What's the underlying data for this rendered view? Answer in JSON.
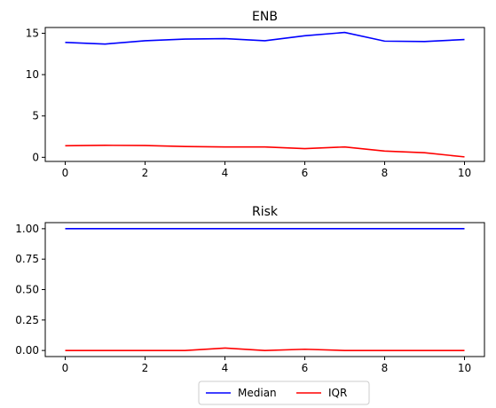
{
  "chart_data": [
    {
      "type": "line",
      "title": "ENB",
      "x": [
        0,
        1,
        2,
        3,
        4,
        5,
        6,
        7,
        8,
        9,
        10
      ],
      "xlim": [
        -0.5,
        10.5
      ],
      "ylim": [
        -0.5,
        15.7
      ],
      "xticks": [
        0,
        2,
        4,
        6,
        8,
        10
      ],
      "yticks": [
        0,
        5,
        10,
        15
      ],
      "ytick_labels": [
        "0",
        "5",
        "10",
        "15"
      ],
      "series": [
        {
          "name": "Median",
          "color": "#0000ff",
          "values": [
            13.9,
            13.7,
            14.1,
            14.3,
            14.35,
            14.1,
            14.7,
            15.1,
            14.05,
            14.0,
            14.25
          ]
        },
        {
          "name": "IQR",
          "color": "#ff0000",
          "values": [
            1.4,
            1.45,
            1.42,
            1.3,
            1.25,
            1.25,
            1.05,
            1.25,
            0.75,
            0.55,
            0.05
          ]
        }
      ]
    },
    {
      "type": "line",
      "title": "Risk",
      "x": [
        0,
        1,
        2,
        3,
        4,
        5,
        6,
        7,
        8,
        9,
        10
      ],
      "xlim": [
        -0.5,
        10.5
      ],
      "ylim": [
        -0.05,
        1.05
      ],
      "xticks": [
        0,
        2,
        4,
        6,
        8,
        10
      ],
      "yticks": [
        0.0,
        0.25,
        0.5,
        0.75,
        1.0
      ],
      "ytick_labels": [
        "0.00",
        "0.25",
        "0.50",
        "0.75",
        "1.00"
      ],
      "series": [
        {
          "name": "Median",
          "color": "#0000ff",
          "values": [
            1,
            1,
            1,
            1,
            1,
            1,
            1,
            1,
            1,
            1,
            1
          ]
        },
        {
          "name": "IQR",
          "color": "#ff0000",
          "values": [
            0.0,
            0.0,
            0.0,
            0.0,
            0.02,
            0.0,
            0.01,
            0.0,
            0.0,
            0.0,
            0.0
          ]
        }
      ]
    }
  ],
  "legend": {
    "placement": "bottom-center",
    "entries": [
      {
        "label": "Median",
        "color": "#0000ff"
      },
      {
        "label": "IQR",
        "color": "#ff0000"
      }
    ]
  }
}
